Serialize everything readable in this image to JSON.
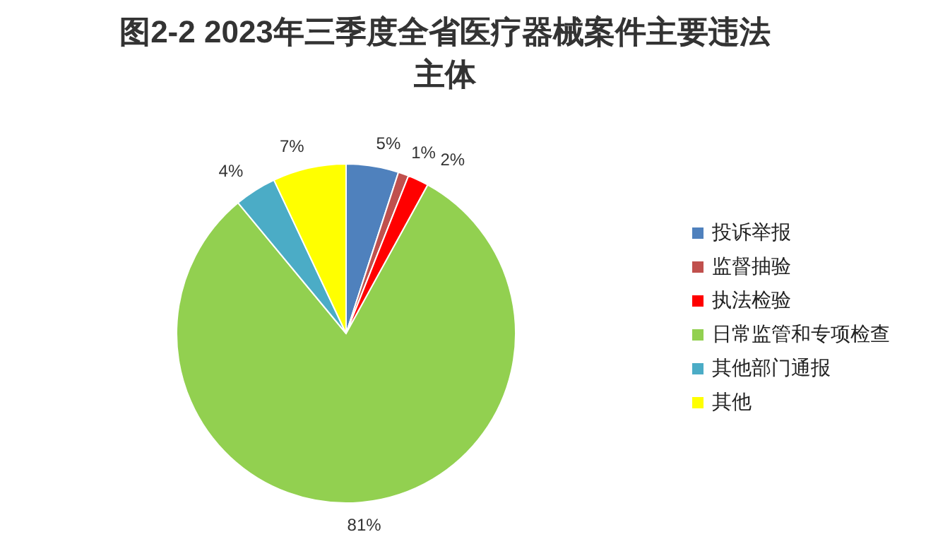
{
  "chart_data": {
    "type": "pie",
    "title": "图2-2 2023年三季度全省医疗器械案件主要违法主体",
    "categories": [
      "投诉举报",
      "监督抽验",
      "执法检验",
      "日常监管和专项检查",
      "其他部门通报",
      "其他"
    ],
    "values": [
      5,
      1,
      2,
      81,
      4,
      7
    ],
    "colors": [
      "#4f81bd",
      "#c0504d",
      "#ff0000",
      "#92d050",
      "#4bacc6",
      "#ffff00"
    ],
    "value_labels": [
      "5%",
      "1%",
      "2%",
      "81%",
      "4%",
      "7%"
    ],
    "legend": "right"
  }
}
